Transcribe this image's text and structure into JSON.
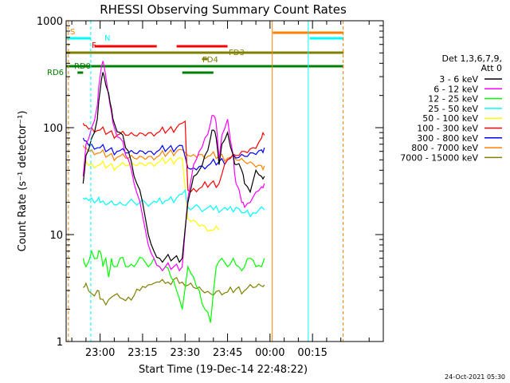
{
  "chart_data": {
    "type": "line",
    "title": "RHESSI Observing Summary Count Rates",
    "xlabel": "Start Time (19-Dec-14 22:48:22)",
    "ylabel": "Count Rate (s⁻¹ detector⁻¹)",
    "yscale": "log",
    "xlim": [
      -12,
      100
    ],
    "ylim": [
      1,
      1000
    ],
    "x_unit": "minutes relative to 23:00",
    "x_ticks": [
      {
        "value": 0,
        "label": "23:00"
      },
      {
        "value": 15,
        "label": "23:15"
      },
      {
        "value": 30,
        "label": "23:30"
      },
      {
        "value": 45,
        "label": "23:45"
      },
      {
        "value": 60,
        "label": "00:00"
      },
      {
        "value": 75,
        "label": "00:15"
      }
    ],
    "y_ticks": [
      {
        "value": 1,
        "label": "1"
      },
      {
        "value": 10,
        "label": "10"
      },
      {
        "value": 100,
        "label": "100"
      },
      {
        "value": 1000,
        "label": "1000"
      }
    ],
    "grid": false,
    "legend_position": "right",
    "legend_header": [
      "Det 1,3,6,7,9,",
      "Att 0"
    ],
    "series": [
      {
        "name": "3 - 6 keV",
        "color": "#000000",
        "x": [
          -6,
          -5,
          -3,
          -1,
          0,
          1,
          2,
          3,
          4,
          5,
          7,
          10,
          12,
          15,
          17,
          19,
          21,
          23,
          26,
          29,
          31,
          33,
          35,
          37,
          39,
          40,
          41,
          42,
          43,
          45,
          47,
          48,
          50,
          51,
          53,
          55,
          57,
          58
        ],
        "values": [
          30,
          55,
          80,
          120,
          220,
          330,
          250,
          210,
          150,
          110,
          90,
          60,
          35,
          20,
          10,
          7,
          6,
          6,
          6,
          6,
          20,
          35,
          40,
          55,
          80,
          95,
          80,
          45,
          70,
          90,
          55,
          45,
          40,
          30,
          25,
          40,
          35,
          35
        ]
      },
      {
        "name": "6 - 12 keV",
        "color": "#ff00ff",
        "x": [
          -6,
          -5,
          -3,
          -1,
          0,
          1,
          2,
          3,
          4,
          5,
          7,
          10,
          12,
          15,
          17,
          19,
          21,
          23,
          26,
          29,
          31,
          33,
          35,
          37,
          39,
          40,
          41,
          42,
          43,
          45,
          47,
          48,
          50,
          51,
          53,
          55,
          57,
          58
        ],
        "values": [
          35,
          70,
          100,
          160,
          300,
          420,
          300,
          200,
          140,
          100,
          80,
          50,
          30,
          15,
          8,
          6,
          5,
          5,
          5,
          5,
          22,
          45,
          60,
          80,
          110,
          130,
          110,
          50,
          85,
          120,
          55,
          30,
          20,
          18,
          20,
          25,
          28,
          30
        ]
      },
      {
        "name": "12 - 25 keV",
        "color": "#00ff00",
        "x": [
          -6,
          -5,
          -3,
          -1,
          0,
          1,
          2,
          3,
          4,
          5,
          7,
          10,
          12,
          15,
          17,
          19,
          21,
          23,
          25,
          27,
          29,
          31,
          33,
          35,
          37,
          39,
          41,
          43,
          45,
          47,
          49,
          51,
          53,
          55,
          57,
          58
        ],
        "values": [
          6,
          5,
          7,
          6,
          7,
          5,
          6,
          4,
          6,
          5,
          6,
          5,
          5,
          6,
          5,
          6,
          5,
          5,
          4,
          3,
          2,
          5,
          4,
          3,
          2,
          1.5,
          5,
          6,
          5,
          6,
          5,
          5,
          6,
          5,
          5,
          6
        ]
      },
      {
        "name": "25 - 50 keV",
        "color": "#00ffff",
        "x": [
          -6,
          -5,
          -3,
          -1,
          0,
          2,
          5,
          8,
          12,
          16,
          20,
          24,
          27,
          29,
          30,
          31,
          35,
          40,
          45,
          48,
          50,
          54,
          58
        ],
        "values": [
          22,
          22,
          22,
          21,
          20,
          19,
          19,
          19,
          20,
          20,
          20,
          21,
          22,
          24,
          26,
          18,
          18,
          17,
          17,
          18,
          16,
          16,
          17
        ]
      },
      {
        "name": "50 - 100 keV",
        "color": "#ffff00",
        "x": [
          -6,
          -5,
          -3,
          0,
          3,
          6,
          9,
          12,
          15,
          18,
          21,
          24,
          27,
          29,
          31,
          34,
          37,
          40,
          42
        ],
        "values": [
          45,
          48,
          46,
          45,
          44,
          43,
          44,
          45,
          46,
          47,
          48,
          49,
          50,
          52,
          14,
          13,
          12,
          11,
          11
        ]
      },
      {
        "name": "100 - 300 keV",
        "color": "#ff0000",
        "x": [
          -6,
          -5,
          -3,
          0,
          3,
          6,
          9,
          12,
          15,
          18,
          21,
          24,
          27,
          29,
          30,
          31,
          33,
          36,
          39,
          42,
          45,
          48,
          51,
          54,
          57,
          58
        ],
        "values": [
          110,
          105,
          100,
          95,
          90,
          85,
          85,
          85,
          88,
          90,
          92,
          95,
          100,
          110,
          115,
          26,
          27,
          28,
          30,
          30,
          50,
          55,
          60,
          65,
          80,
          85
        ]
      },
      {
        "name": "300 - 800 keV",
        "color": "#0000ff",
        "x": [
          -6,
          -5,
          -3,
          0,
          3,
          6,
          9,
          12,
          15,
          18,
          21,
          24,
          27,
          29,
          31,
          33,
          36,
          39,
          42,
          45,
          48,
          51,
          54,
          57,
          58
        ],
        "values": [
          80,
          75,
          70,
          65,
          62,
          60,
          58,
          58,
          60,
          60,
          62,
          64,
          65,
          68,
          42,
          42,
          44,
          46,
          48,
          50,
          52,
          54,
          58,
          62,
          65
        ]
      },
      {
        "name": "800 - 7000 keV",
        "color": "#ff8000",
        "x": [
          -6,
          -5,
          -3,
          0,
          3,
          6,
          9,
          12,
          15,
          18,
          21,
          24,
          27,
          29,
          31,
          33,
          36,
          39,
          42,
          45,
          48,
          51,
          54,
          57,
          58
        ],
        "values": [
          68,
          65,
          62,
          58,
          55,
          53,
          52,
          52,
          53,
          54,
          55,
          58,
          60,
          62,
          55,
          56,
          56,
          55,
          54,
          52,
          50,
          48,
          46,
          44,
          44
        ]
      },
      {
        "name": "7000 - 15000 keV",
        "color": "#808000",
        "x": [
          -6,
          -5,
          -3,
          -1,
          0,
          2,
          4,
          6,
          8,
          10,
          12,
          14,
          16,
          18,
          20,
          22,
          24,
          26,
          28,
          30,
          33,
          36,
          39,
          42,
          45,
          48,
          51,
          54,
          57,
          58
        ],
        "values": [
          3.2,
          3.5,
          2.8,
          3,
          2.5,
          2.2,
          2.6,
          2.8,
          2.5,
          2.6,
          2.7,
          3,
          3.2,
          3.4,
          3.6,
          3.8,
          3.6,
          3.8,
          3.5,
          3.3,
          3.2,
          3,
          2.8,
          3,
          2.9,
          3.1,
          3,
          3.2,
          3.3,
          3.4
        ]
      }
    ],
    "flag_labels": [
      "S",
      "N",
      "F",
      "FD3",
      "FD4",
      "RD0",
      "RD6"
    ]
  }
}
